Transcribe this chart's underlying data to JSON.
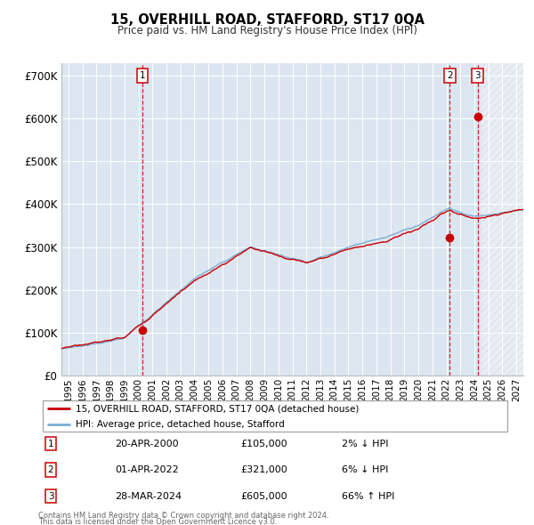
{
  "title": "15, OVERHILL ROAD, STAFFORD, ST17 0QA",
  "subtitle": "Price paid vs. HM Land Registry's House Price Index (HPI)",
  "plot_bg_color": "#dce6f0",
  "legend_line1": "15, OVERHILL ROAD, STAFFORD, ST17 0QA (detached house)",
  "legend_line2": "HPI: Average price, detached house, Stafford",
  "transactions": [
    {
      "label": "1",
      "date": "20-APR-2000",
      "price": 105000,
      "hpi_note": "2% ↓ HPI",
      "x_year": 2000.3
    },
    {
      "label": "2",
      "date": "01-APR-2022",
      "price": 321000,
      "hpi_note": "6% ↓ HPI",
      "x_year": 2022.25
    },
    {
      "label": "3",
      "date": "28-MAR-2024",
      "price": 605000,
      "hpi_note": "66% ↑ HPI",
      "x_year": 2024.23
    }
  ],
  "red_line_color": "#cc0000",
  "blue_line_color": "#7aadd4",
  "marker_color": "#cc0000",
  "dashed_line_color": "#cc0000",
  "ylabel_ticks": [
    "£0",
    "£100K",
    "£200K",
    "£300K",
    "£400K",
    "£500K",
    "£600K",
    "£700K"
  ],
  "ytick_values": [
    0,
    100000,
    200000,
    300000,
    400000,
    500000,
    600000,
    700000
  ],
  "ylim": [
    0,
    730000
  ],
  "xlim_start": 1994.5,
  "xlim_end": 2027.5,
  "xtick_years": [
    1995,
    1996,
    1997,
    1998,
    1999,
    2000,
    2001,
    2002,
    2003,
    2004,
    2005,
    2006,
    2007,
    2008,
    2009,
    2010,
    2011,
    2012,
    2013,
    2014,
    2015,
    2016,
    2017,
    2018,
    2019,
    2020,
    2021,
    2022,
    2023,
    2024,
    2025,
    2026,
    2027
  ],
  "footer_line1": "Contains HM Land Registry data © Crown copyright and database right 2024.",
  "footer_line2": "This data is licensed under the Open Government Licence v3.0.",
  "table_rows": [
    [
      "1",
      "20-APR-2000",
      "£105,000",
      "2% ↓ HPI"
    ],
    [
      "2",
      "01-APR-2022",
      "£321,000",
      "6% ↓ HPI"
    ],
    [
      "3",
      "28-MAR-2024",
      "£605,000",
      "66% ↑ HPI"
    ]
  ]
}
